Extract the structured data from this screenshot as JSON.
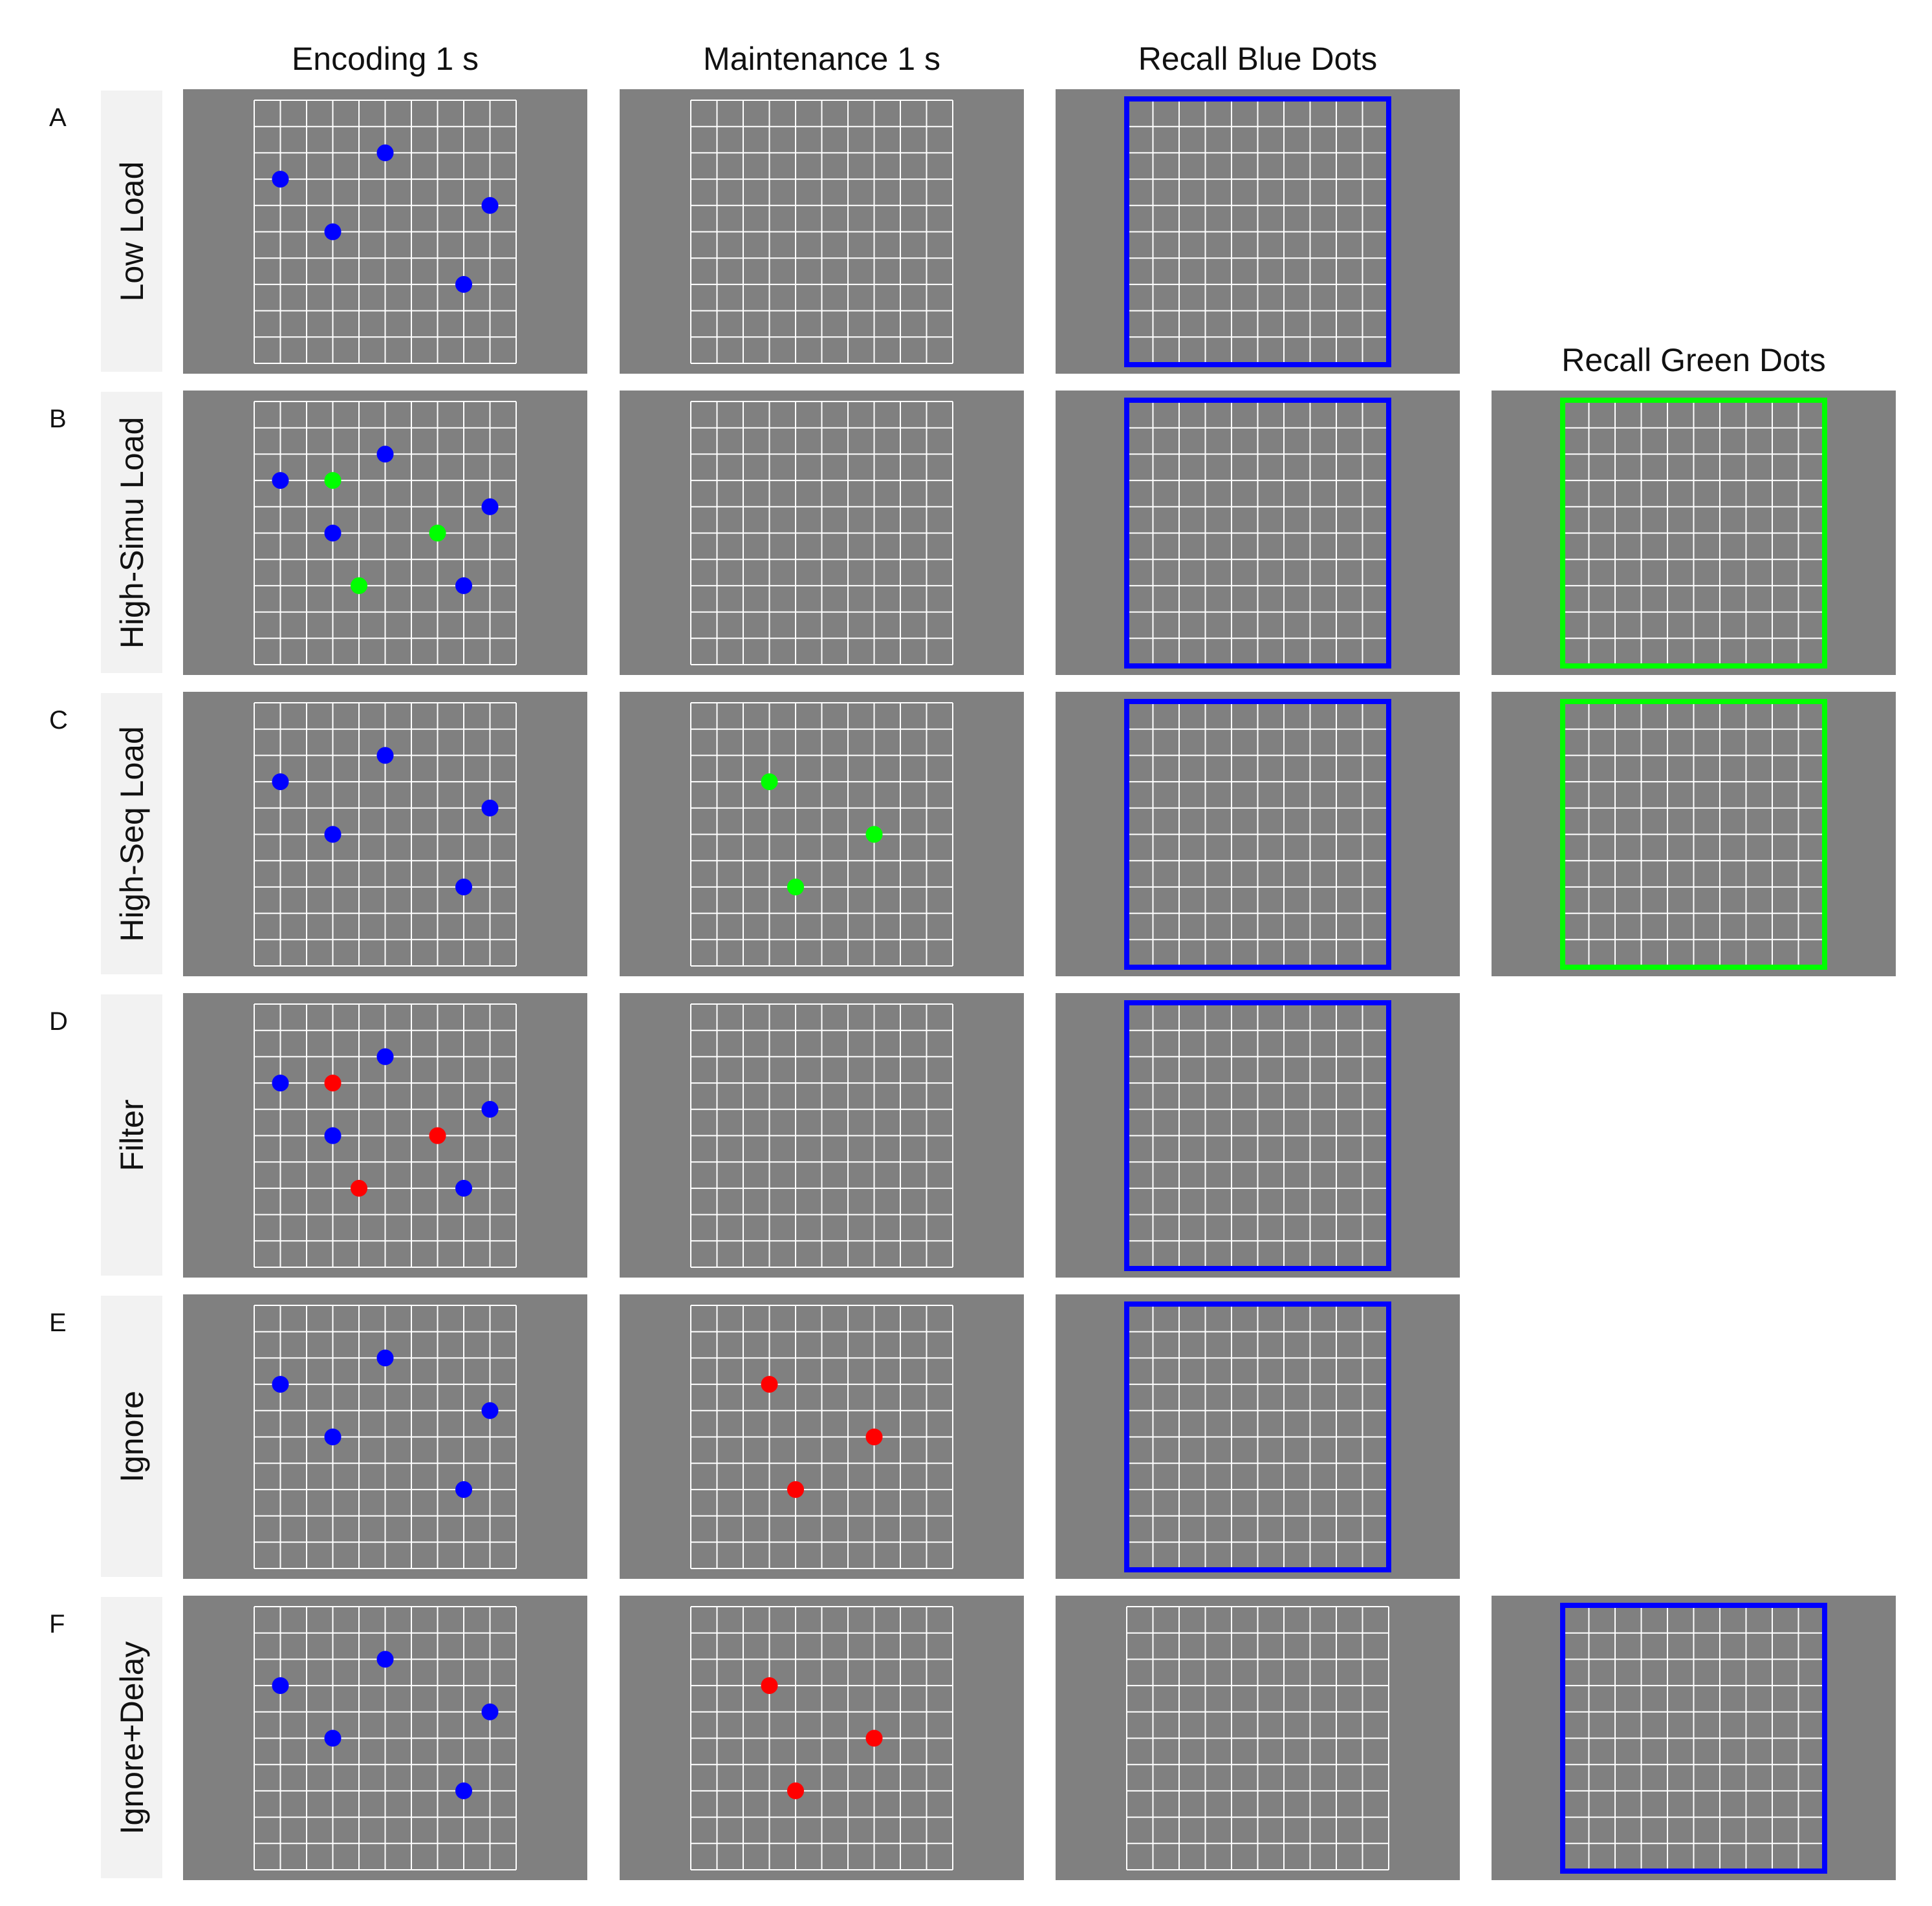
{
  "columns": [
    {
      "key": "encoding",
      "label": "Encoding 1 s"
    },
    {
      "key": "maintenance",
      "label": "Maintenance 1 s"
    },
    {
      "key": "recall_blue",
      "label": "Recall Blue Dots"
    },
    {
      "key": "recall_green",
      "label": "Recall Green Dots"
    }
  ],
  "colors": {
    "blue": "#0000ff",
    "green": "#00ff00",
    "red": "#ff0000",
    "panel": "#808080",
    "grid": "#ffffff",
    "label_bg": "#f2f2f2"
  },
  "grid": {
    "cols": 10,
    "rows": 10
  },
  "rows": [
    {
      "letter": "A",
      "label": "Low Load",
      "panels": [
        {
          "col": "encoding",
          "dots": [
            {
              "c": "blue",
              "x": 1,
              "y": 3
            },
            {
              "c": "blue",
              "x": 5,
              "y": 2
            },
            {
              "c": "blue",
              "x": 9,
              "y": 4
            },
            {
              "c": "blue",
              "x": 3,
              "y": 5
            },
            {
              "c": "blue",
              "x": 8,
              "y": 7
            }
          ]
        },
        {
          "col": "maintenance",
          "dots": []
        },
        {
          "col": "recall_blue",
          "frame": "blue",
          "dots": []
        }
      ]
    },
    {
      "letter": "B",
      "label": "High-Simu Load",
      "panels": [
        {
          "col": "encoding",
          "dots": [
            {
              "c": "blue",
              "x": 1,
              "y": 3
            },
            {
              "c": "green",
              "x": 3,
              "y": 3
            },
            {
              "c": "blue",
              "x": 5,
              "y": 2
            },
            {
              "c": "blue",
              "x": 9,
              "y": 4
            },
            {
              "c": "blue",
              "x": 3,
              "y": 5
            },
            {
              "c": "green",
              "x": 7,
              "y": 5
            },
            {
              "c": "green",
              "x": 4,
              "y": 7
            },
            {
              "c": "blue",
              "x": 8,
              "y": 7
            }
          ]
        },
        {
          "col": "maintenance",
          "dots": []
        },
        {
          "col": "recall_blue",
          "frame": "blue",
          "dots": []
        },
        {
          "col": "recall_green",
          "frame": "green",
          "dots": []
        }
      ]
    },
    {
      "letter": "C",
      "label": "High-Seq Load",
      "panels": [
        {
          "col": "encoding",
          "dots": [
            {
              "c": "blue",
              "x": 1,
              "y": 3
            },
            {
              "c": "blue",
              "x": 5,
              "y": 2
            },
            {
              "c": "blue",
              "x": 9,
              "y": 4
            },
            {
              "c": "blue",
              "x": 3,
              "y": 5
            },
            {
              "c": "blue",
              "x": 8,
              "y": 7
            }
          ]
        },
        {
          "col": "maintenance",
          "dots": [
            {
              "c": "green",
              "x": 3,
              "y": 3
            },
            {
              "c": "green",
              "x": 7,
              "y": 5
            },
            {
              "c": "green",
              "x": 4,
              "y": 7
            }
          ]
        },
        {
          "col": "recall_blue",
          "frame": "blue",
          "dots": []
        },
        {
          "col": "recall_green",
          "frame": "green",
          "dots": []
        }
      ]
    },
    {
      "letter": "D",
      "label": "Filter",
      "panels": [
        {
          "col": "encoding",
          "dots": [
            {
              "c": "blue",
              "x": 1,
              "y": 3
            },
            {
              "c": "red",
              "x": 3,
              "y": 3
            },
            {
              "c": "blue",
              "x": 5,
              "y": 2
            },
            {
              "c": "blue",
              "x": 9,
              "y": 4
            },
            {
              "c": "blue",
              "x": 3,
              "y": 5
            },
            {
              "c": "red",
              "x": 7,
              "y": 5
            },
            {
              "c": "red",
              "x": 4,
              "y": 7
            },
            {
              "c": "blue",
              "x": 8,
              "y": 7
            }
          ]
        },
        {
          "col": "maintenance",
          "dots": []
        },
        {
          "col": "recall_blue",
          "frame": "blue",
          "dots": []
        }
      ]
    },
    {
      "letter": "E",
      "label": "Ignore",
      "panels": [
        {
          "col": "encoding",
          "dots": [
            {
              "c": "blue",
              "x": 1,
              "y": 3
            },
            {
              "c": "blue",
              "x": 5,
              "y": 2
            },
            {
              "c": "blue",
              "x": 9,
              "y": 4
            },
            {
              "c": "blue",
              "x": 3,
              "y": 5
            },
            {
              "c": "blue",
              "x": 8,
              "y": 7
            }
          ]
        },
        {
          "col": "maintenance",
          "dots": [
            {
              "c": "red",
              "x": 3,
              "y": 3
            },
            {
              "c": "red",
              "x": 7,
              "y": 5
            },
            {
              "c": "red",
              "x": 4,
              "y": 7
            }
          ]
        },
        {
          "col": "recall_blue",
          "frame": "blue",
          "dots": []
        }
      ]
    },
    {
      "letter": "F",
      "label": "Ignore+Delay",
      "panels": [
        {
          "col": "encoding",
          "dots": [
            {
              "c": "blue",
              "x": 1,
              "y": 3
            },
            {
              "c": "blue",
              "x": 5,
              "y": 2
            },
            {
              "c": "blue",
              "x": 9,
              "y": 4
            },
            {
              "c": "blue",
              "x": 3,
              "y": 5
            },
            {
              "c": "blue",
              "x": 8,
              "y": 7
            }
          ]
        },
        {
          "col": "maintenance",
          "dots": [
            {
              "c": "red",
              "x": 3,
              "y": 3
            },
            {
              "c": "red",
              "x": 7,
              "y": 5
            },
            {
              "c": "red",
              "x": 4,
              "y": 7
            }
          ]
        },
        {
          "col": "recall_blue",
          "dots": []
        },
        {
          "col": "recall_green",
          "frame": "blue",
          "dots": []
        }
      ]
    }
  ]
}
